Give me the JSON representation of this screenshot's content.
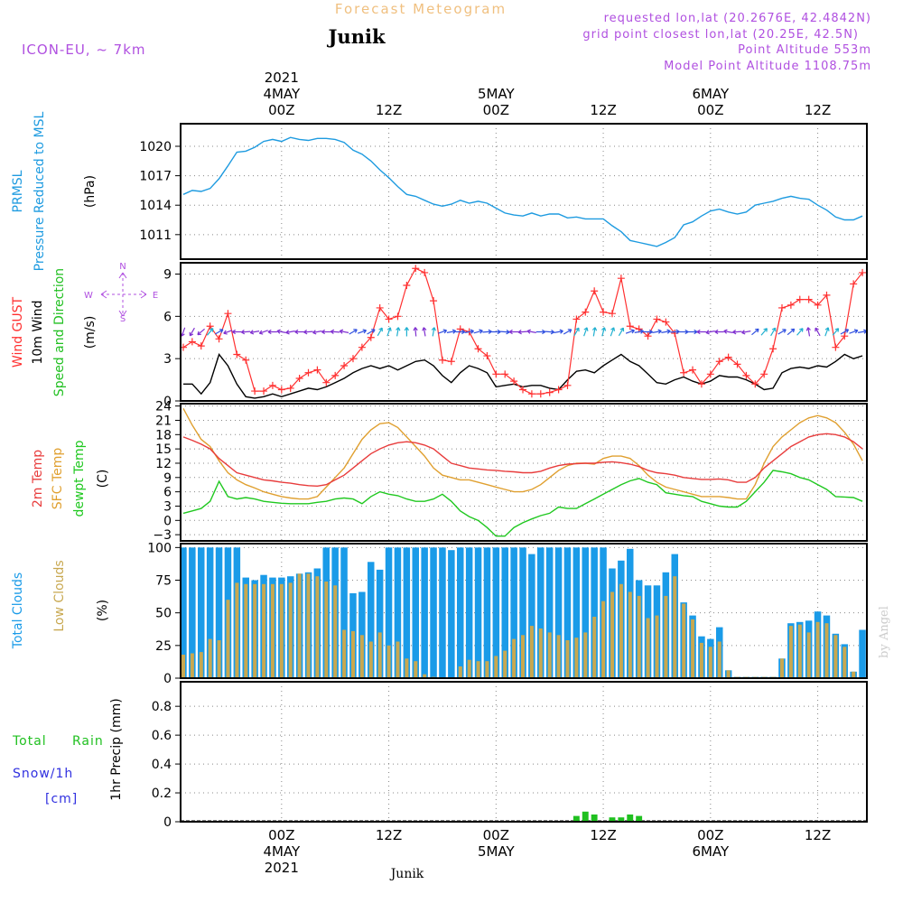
{
  "header": {
    "title": "Forecast Meteogram",
    "location": "Junik",
    "model": "ICON-EU, ~ 7km",
    "requested": "requested lon,lat (20.2676E, 42.4842N)",
    "gridpoint": "grid point closest lon,lat (20.25E, 42.5N)",
    "point_alt": "Point Altitude 553m",
    "model_alt": "Model Point Altitude 1108.75m",
    "footer_location": "Junik",
    "watermark": "by Angel"
  },
  "colors": {
    "pressure": "#1e9be0",
    "gust": "#ff3030",
    "wind": "#000000",
    "speeddir": "#22c022",
    "temp": "#e83c3c",
    "sfc": "#e0a030",
    "dewpt": "#20c820",
    "total_cloud": "#1a9be8",
    "low_cloud": "#c8a850",
    "rain": "#20c020",
    "snow": "#3030e0",
    "header_purple": "#b050e0",
    "title_orange": "#f0c080"
  },
  "time_axis": {
    "top_labels": [
      {
        "t": 0,
        "lines": [
          "2021",
          "4MAY",
          "00Z"
        ]
      },
      {
        "t": 12,
        "lines": [
          "12Z"
        ]
      },
      {
        "t": 24,
        "lines": [
          "5MAY",
          "00Z"
        ]
      },
      {
        "t": 36,
        "lines": [
          "12Z"
        ]
      },
      {
        "t": 48,
        "lines": [
          "6MAY",
          "00Z"
        ]
      },
      {
        "t": 60,
        "lines": [
          "12Z"
        ]
      }
    ],
    "bottom_labels": [
      {
        "t": 0,
        "lines": [
          "00Z",
          "4MAY",
          "2021"
        ]
      },
      {
        "t": 12,
        "lines": [
          "12Z"
        ]
      },
      {
        "t": 24,
        "lines": [
          "00Z",
          "5MAY"
        ]
      },
      {
        "t": 36,
        "lines": [
          "12Z"
        ]
      },
      {
        "t": 48,
        "lines": [
          "00Z",
          "6MAY"
        ]
      },
      {
        "t": 60,
        "lines": [
          "12Z"
        ]
      }
    ],
    "range_hours": [
      -11.3,
      65.5
    ]
  },
  "panels": {
    "pressure": {
      "labels": [
        "PRMSL",
        "Pressure Reduced to MSL"
      ],
      "unit": "(hPa)",
      "yticks": [
        1011,
        1014,
        1017,
        1020
      ]
    },
    "wind": {
      "labels": [
        "Wind GUST",
        "10m Wind",
        "Speed and Direction"
      ],
      "unit": "(m/s)",
      "yticks": [
        0,
        3,
        6,
        9
      ],
      "compass": {
        "n": "N",
        "s": "S",
        "w": "W",
        "e": "E"
      }
    },
    "temp": {
      "labels": [
        "2m Temp",
        "SFC Temp",
        "dewpt Temp"
      ],
      "unit": "(C)",
      "yticks": [
        -3,
        0,
        3,
        6,
        9,
        12,
        15,
        18,
        21,
        24
      ]
    },
    "clouds": {
      "labels": [
        "Total Clouds",
        "Low Clouds"
      ],
      "unit": "(%)",
      "yticks": [
        0,
        25,
        50,
        75,
        100
      ]
    },
    "precip": {
      "labels": [
        "Total",
        "Rain",
        "Snow/1h",
        "[cm]"
      ],
      "unit": "1hr Precip (mm)",
      "yticks": [
        0,
        0.2,
        0.4,
        0.6,
        0.8
      ]
    }
  },
  "chart_data": [
    {
      "type": "line",
      "name": "pressure",
      "ylim": [
        1008.5,
        1022.3
      ],
      "x": [
        -11,
        -10,
        -9,
        -8,
        -7,
        -6,
        -5,
        -4,
        -3,
        -2,
        -1,
        0,
        1,
        2,
        3,
        4,
        5,
        6,
        7,
        8,
        9,
        10,
        11,
        12,
        13,
        14,
        15,
        16,
        17,
        18,
        19,
        20,
        21,
        22,
        23,
        24,
        25,
        26,
        27,
        28,
        29,
        30,
        31,
        32,
        33,
        34,
        35,
        36,
        37,
        38,
        39,
        40,
        41,
        42,
        43,
        44,
        45,
        46,
        47,
        48,
        49,
        50,
        51,
        52,
        53,
        54,
        55,
        56,
        57,
        58,
        59,
        60,
        61,
        62,
        63,
        64,
        65
      ],
      "y": [
        1015.1,
        1015.5,
        1015.4,
        1015.7,
        1016.7,
        1018.0,
        1019.4,
        1019.5,
        1019.9,
        1020.5,
        1020.7,
        1020.5,
        1020.9,
        1020.7,
        1020.6,
        1020.8,
        1020.8,
        1020.7,
        1020.4,
        1019.6,
        1019.2,
        1018.5,
        1017.6,
        1016.8,
        1015.9,
        1015.1,
        1014.9,
        1014.5,
        1014.1,
        1013.9,
        1014.1,
        1014.5,
        1014.2,
        1014.4,
        1014.2,
        1013.7,
        1013.2,
        1013.0,
        1012.9,
        1013.2,
        1012.9,
        1013.1,
        1013.1,
        1012.7,
        1012.8,
        1012.6,
        1012.6,
        1012.6,
        1011.9,
        1011.3,
        1010.4,
        1010.2,
        1010.0,
        1009.8,
        1010.2,
        1010.7,
        1012.0,
        1012.3,
        1012.9,
        1013.4,
        1013.6,
        1013.3,
        1013.1,
        1013.3,
        1014.0,
        1014.2,
        1014.4,
        1014.7,
        1014.9,
        1014.7,
        1014.6,
        1014.0,
        1013.5,
        1012.8,
        1012.5,
        1012.5,
        1012.9
      ]
    },
    {
      "type": "line",
      "name": "wind",
      "ylim": [
        0,
        9.8
      ],
      "gust_x": [
        -11,
        -10,
        -9,
        -8,
        -7,
        -6,
        -5,
        -4,
        -3,
        -2,
        -1,
        0,
        1,
        2,
        3,
        4,
        5,
        6,
        7,
        8,
        9,
        10,
        11,
        12,
        13,
        14,
        15,
        16,
        17,
        18,
        19,
        20,
        21,
        22,
        23,
        24,
        25,
        26,
        27,
        28,
        29,
        30,
        31,
        32,
        33,
        34,
        35,
        36,
        37,
        38,
        39,
        40,
        41,
        42,
        43,
        44,
        45,
        46,
        47,
        48,
        49,
        50,
        51,
        52,
        53,
        54,
        55,
        56,
        57,
        58,
        59,
        60,
        61,
        62,
        63,
        64,
        65
      ],
      "gust": [
        3.8,
        4.2,
        3.9,
        5.3,
        4.4,
        6.2,
        3.3,
        2.9,
        0.7,
        0.7,
        1.1,
        0.8,
        0.9,
        1.6,
        2.0,
        2.2,
        1.3,
        1.8,
        2.5,
        3.0,
        3.8,
        4.5,
        6.6,
        5.8,
        6.0,
        8.2,
        9.4,
        9.1,
        7.1,
        2.9,
        2.8,
        5.1,
        4.9,
        3.7,
        3.2,
        1.9,
        1.9,
        1.4,
        0.8,
        0.5,
        0.5,
        0.6,
        0.8,
        1.1,
        5.8,
        6.3,
        7.8,
        6.3,
        6.2,
        8.7,
        5.3,
        5.1,
        4.6,
        5.8,
        5.6,
        4.8,
        2.0,
        2.2,
        1.2,
        1.9,
        2.8,
        3.1,
        2.6,
        1.8,
        1.2,
        1.9,
        3.7,
        6.6,
        6.8,
        7.2,
        7.2,
        6.8,
        7.5,
        3.8,
        4.6,
        8.3,
        9.1
      ],
      "wind": [
        1.2,
        1.2,
        0.5,
        1.3,
        3.3,
        2.5,
        1.2,
        0.3,
        0.2,
        0.3,
        0.5,
        0.3,
        0.5,
        0.7,
        0.9,
        0.8,
        1.0,
        1.3,
        1.6,
        2.0,
        2.3,
        2.5,
        2.3,
        2.5,
        2.2,
        2.5,
        2.8,
        2.9,
        2.5,
        1.8,
        1.3,
        2.0,
        2.5,
        2.3,
        2.0,
        1.0,
        1.1,
        1.2,
        1.0,
        1.1,
        1.1,
        0.9,
        0.8,
        1.5,
        2.1,
        2.2,
        2.0,
        2.5,
        2.9,
        3.3,
        2.8,
        2.5,
        1.9,
        1.3,
        1.2,
        1.5,
        1.7,
        1.4,
        1.2,
        1.4,
        1.8,
        1.7,
        1.7,
        1.5,
        1.2,
        0.8,
        0.9,
        2.0,
        2.3,
        2.4,
        2.3,
        2.5,
        2.4,
        2.8,
        3.3,
        3.0,
        3.2
      ],
      "arrows_x": [
        -11,
        -10,
        -9,
        -8,
        -7,
        -6,
        -5,
        -4,
        -3,
        -2,
        -1,
        0,
        1,
        2,
        3,
        4,
        5,
        6,
        7,
        8,
        9,
        10,
        11,
        12,
        13,
        14,
        15,
        16,
        17,
        18,
        19,
        20,
        21,
        22,
        23,
        24,
        25,
        26,
        27,
        28,
        29,
        30,
        31,
        32,
        33,
        34,
        35,
        36,
        37,
        38,
        39,
        40,
        41,
        42,
        43,
        44,
        45,
        46,
        47,
        48,
        49,
        50,
        51,
        52,
        53,
        54,
        55,
        56,
        57,
        58,
        59,
        60,
        61,
        62,
        63,
        64,
        65
      ],
      "arrow_dir_deg": [
        200,
        210,
        230,
        40,
        60,
        250,
        270,
        265,
        260,
        250,
        270,
        280,
        260,
        270,
        265,
        260,
        270,
        275,
        280,
        60,
        70,
        60,
        30,
        20,
        10,
        0,
        355,
        350,
        10,
        70,
        80,
        90,
        80,
        75,
        85,
        90,
        95,
        270,
        265,
        280,
        90,
        95,
        80,
        60,
        30,
        20,
        10,
        15,
        20,
        30,
        70,
        80,
        90,
        80,
        80,
        85,
        90,
        90,
        270,
        260,
        270,
        280,
        265,
        260,
        50,
        40,
        30,
        60,
        50,
        40,
        350,
        330,
        20,
        40,
        60,
        70,
        80
      ]
    },
    {
      "type": "line",
      "name": "temperature",
      "ylim": [
        -4.3,
        24.5
      ],
      "x": [
        -11,
        -10,
        -9,
        -8,
        -7,
        -6,
        -5,
        -4,
        -3,
        -2,
        -1,
        0,
        1,
        2,
        3,
        4,
        5,
        6,
        7,
        8,
        9,
        10,
        11,
        12,
        13,
        14,
        15,
        16,
        17,
        18,
        19,
        20,
        21,
        22,
        23,
        24,
        25,
        26,
        27,
        28,
        29,
        30,
        31,
        32,
        33,
        34,
        35,
        36,
        37,
        38,
        39,
        40,
        41,
        42,
        43,
        44,
        45,
        46,
        47,
        48,
        49,
        50,
        51,
        52,
        53,
        54,
        55,
        56,
        57,
        58,
        59,
        60,
        61,
        62,
        63,
        64,
        65
      ],
      "t2m": [
        17.5,
        16.8,
        16.0,
        15.0,
        13.0,
        11.5,
        10.0,
        9.5,
        9.0,
        8.5,
        8.3,
        8.0,
        7.8,
        7.5,
        7.3,
        7.2,
        7.5,
        8.5,
        9.5,
        11.0,
        12.5,
        14.0,
        15.0,
        15.8,
        16.3,
        16.5,
        16.3,
        15.8,
        15.0,
        13.5,
        12.0,
        11.5,
        11.0,
        10.8,
        10.6,
        10.5,
        10.3,
        10.2,
        10.0,
        10.0,
        10.3,
        11.0,
        11.5,
        11.8,
        11.9,
        12.0,
        12.0,
        12.2,
        12.3,
        12.1,
        11.8,
        11.3,
        10.5,
        10.0,
        9.8,
        9.5,
        9.0,
        8.8,
        8.6,
        8.6,
        8.7,
        8.5,
        8.0,
        8.0,
        9.0,
        11.0,
        12.5,
        14.0,
        15.5,
        16.5,
        17.5,
        18.0,
        18.2,
        18.0,
        17.5,
        16.5,
        15.0
      ],
      "sfc": [
        23.5,
        20.0,
        17.0,
        15.5,
        12.5,
        10.0,
        8.5,
        7.5,
        6.8,
        6.0,
        5.5,
        5.0,
        4.7,
        4.5,
        4.5,
        5.0,
        7.0,
        9.0,
        11.0,
        14.0,
        17.0,
        19.0,
        20.3,
        20.5,
        19.5,
        17.5,
        15.5,
        13.5,
        11.0,
        9.5,
        9.0,
        8.5,
        8.5,
        8.0,
        7.5,
        7.0,
        6.5,
        6.0,
        6.0,
        6.5,
        7.5,
        9.0,
        10.5,
        11.5,
        12.0,
        12.0,
        11.8,
        13.0,
        13.5,
        13.5,
        13.0,
        11.5,
        9.5,
        8.0,
        7.0,
        6.5,
        6.0,
        5.5,
        5.0,
        5.0,
        5.0,
        4.8,
        4.5,
        4.5,
        7.5,
        12.0,
        15.5,
        17.5,
        19.0,
        20.5,
        21.5,
        22.0,
        21.5,
        20.5,
        18.5,
        16.0,
        12.5
      ],
      "dewpt": [
        1.5,
        2.0,
        2.5,
        4.0,
        8.2,
        5.0,
        4.5,
        4.8,
        4.5,
        4.0,
        3.8,
        3.6,
        3.5,
        3.5,
        3.5,
        3.8,
        4.0,
        4.5,
        4.7,
        4.5,
        3.5,
        5.0,
        6.0,
        5.5,
        5.2,
        4.5,
        4.0,
        4.0,
        4.5,
        5.5,
        4.0,
        2.0,
        0.8,
        0.0,
        -1.5,
        -3.3,
        -3.3,
        -1.5,
        -0.5,
        0.3,
        1.0,
        1.5,
        2.8,
        2.5,
        2.5,
        3.5,
        4.5,
        5.5,
        6.5,
        7.5,
        8.3,
        8.8,
        8.0,
        7.5,
        5.8,
        5.5,
        5.2,
        5.0,
        4.0,
        3.5,
        3.0,
        2.8,
        2.8,
        4.0,
        6.0,
        8.0,
        10.5,
        10.2,
        9.8,
        9.0,
        8.5,
        7.5,
        6.5,
        5.0,
        4.9,
        4.8,
        4.0
      ]
    },
    {
      "type": "bar",
      "name": "clouds",
      "ylim": [
        0,
        103
      ],
      "x": [
        -11,
        -10,
        -9,
        -8,
        -7,
        -6,
        -5,
        -4,
        -3,
        -2,
        -1,
        0,
        1,
        2,
        3,
        4,
        5,
        6,
        7,
        8,
        9,
        10,
        11,
        12,
        13,
        14,
        15,
        16,
        17,
        18,
        19,
        20,
        21,
        22,
        23,
        24,
        25,
        26,
        27,
        28,
        29,
        30,
        31,
        32,
        33,
        34,
        35,
        36,
        37,
        38,
        39,
        40,
        41,
        42,
        43,
        44,
        45,
        46,
        47,
        48,
        49,
        50,
        51,
        52,
        53,
        54,
        55,
        56,
        57,
        58,
        59,
        60,
        61,
        62,
        63,
        64,
        65
      ],
      "total": [
        100,
        100,
        100,
        100,
        100,
        100,
        100,
        77,
        75,
        79,
        77,
        77,
        78,
        80,
        81,
        84,
        100,
        100,
        100,
        65,
        66,
        89,
        83,
        100,
        100,
        100,
        100,
        100,
        100,
        100,
        98,
        100,
        100,
        100,
        100,
        100,
        100,
        100,
        100,
        95,
        100,
        100,
        100,
        100,
        100,
        100,
        100,
        100,
        84,
        90,
        99,
        75,
        71,
        71,
        81,
        95,
        58,
        48,
        32,
        30,
        39,
        6,
        1,
        1,
        1,
        1,
        1,
        15,
        42,
        43,
        44,
        51,
        48,
        34,
        26,
        5,
        37
      ],
      "low": [
        18,
        19,
        20,
        30,
        29,
        60,
        73,
        72,
        72,
        72,
        72,
        72,
        73,
        80,
        80,
        78,
        74,
        71,
        37,
        36,
        33,
        28,
        35,
        25,
        28,
        15,
        13,
        3,
        1,
        0,
        0,
        9,
        14,
        13,
        13,
        17,
        21,
        30,
        33,
        40,
        38,
        35,
        33,
        29,
        31,
        35,
        47,
        59,
        66,
        72,
        66,
        63,
        46,
        48,
        63,
        78,
        57,
        45,
        27,
        24,
        28,
        6,
        1,
        1,
        1,
        1,
        1,
        15,
        40,
        41,
        35,
        43,
        42,
        33,
        24,
        5,
        0
      ]
    },
    {
      "type": "bar",
      "name": "precip",
      "ylim": [
        0,
        0.97
      ],
      "x": [
        -11,
        -10,
        -9,
        -8,
        -7,
        -6,
        -5,
        -4,
        -3,
        -2,
        -1,
        0,
        1,
        2,
        3,
        4,
        5,
        6,
        7,
        8,
        9,
        10,
        11,
        12,
        13,
        14,
        15,
        16,
        17,
        18,
        19,
        20,
        21,
        22,
        23,
        24,
        25,
        26,
        27,
        28,
        29,
        30,
        31,
        32,
        33,
        34,
        35,
        36,
        37,
        38,
        39,
        40,
        41,
        42,
        43,
        44,
        45,
        46,
        47,
        48,
        49,
        50,
        51,
        52,
        53,
        54,
        55,
        56,
        57,
        58,
        59,
        60,
        61,
        62,
        63,
        64,
        65
      ],
      "total": [
        0,
        0,
        0,
        0,
        0,
        0,
        0,
        0,
        0,
        0,
        0,
        0,
        0,
        0,
        0,
        0,
        0,
        0,
        0,
        0,
        0,
        0,
        0,
        0,
        0,
        0,
        0,
        0,
        0,
        0,
        0,
        0,
        0,
        0,
        0,
        0,
        0,
        0,
        0,
        0,
        0,
        0,
        0,
        0,
        0.04,
        0.07,
        0.05,
        0,
        0.03,
        0.03,
        0.05,
        0.04,
        0,
        0,
        0,
        0,
        0,
        0,
        0,
        0,
        0,
        0,
        0,
        0,
        0,
        0,
        0,
        0,
        0,
        0,
        0,
        0,
        0,
        0,
        0,
        0,
        0
      ]
    }
  ]
}
